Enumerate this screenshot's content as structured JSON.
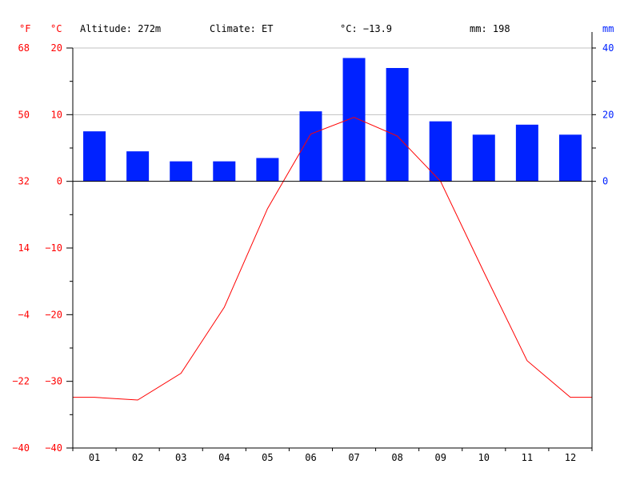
{
  "header": {
    "unit_f": "°F",
    "unit_c": "°C",
    "unit_mm": "mm",
    "altitude": "Altitude: 272m",
    "climate": "Climate: ET",
    "mean_temp": "°C: −13.9",
    "total_precip": "mm: 198"
  },
  "colors": {
    "temperature": "#ff0000",
    "precipitation": "#0022ff",
    "grid": "#c0c0c0",
    "axis": "#000000"
  },
  "chart_data": {
    "type": "bar",
    "categories": [
      "01",
      "02",
      "03",
      "04",
      "05",
      "06",
      "07",
      "08",
      "09",
      "10",
      "11",
      "12"
    ],
    "series": [
      {
        "type": "bar",
        "axis": "right",
        "values": [
          15,
          9,
          6,
          6,
          7,
          21,
          37,
          34,
          18,
          14,
          17,
          14
        ]
      },
      {
        "type": "line",
        "axis": "left",
        "values": [
          -32.4,
          -32.8,
          -28.8,
          -18.9,
          -4.1,
          7.1,
          9.6,
          6.8,
          0,
          -13.6,
          -26.9,
          -32.4
        ]
      }
    ],
    "celsius_axis": {
      "ylim": [
        -40,
        20
      ],
      "ticks": [
        "20",
        "10",
        "0",
        "−10",
        "−20",
        "−30",
        "−40"
      ]
    },
    "fahrenheit_axis": {
      "ticks": [
        "68",
        "50",
        "32",
        "14",
        "−4",
        "−22",
        "−40"
      ]
    },
    "mm_axis": {
      "ylim": [
        0,
        40
      ],
      "ticks": [
        "40",
        "20",
        "0"
      ]
    },
    "grid": true
  }
}
